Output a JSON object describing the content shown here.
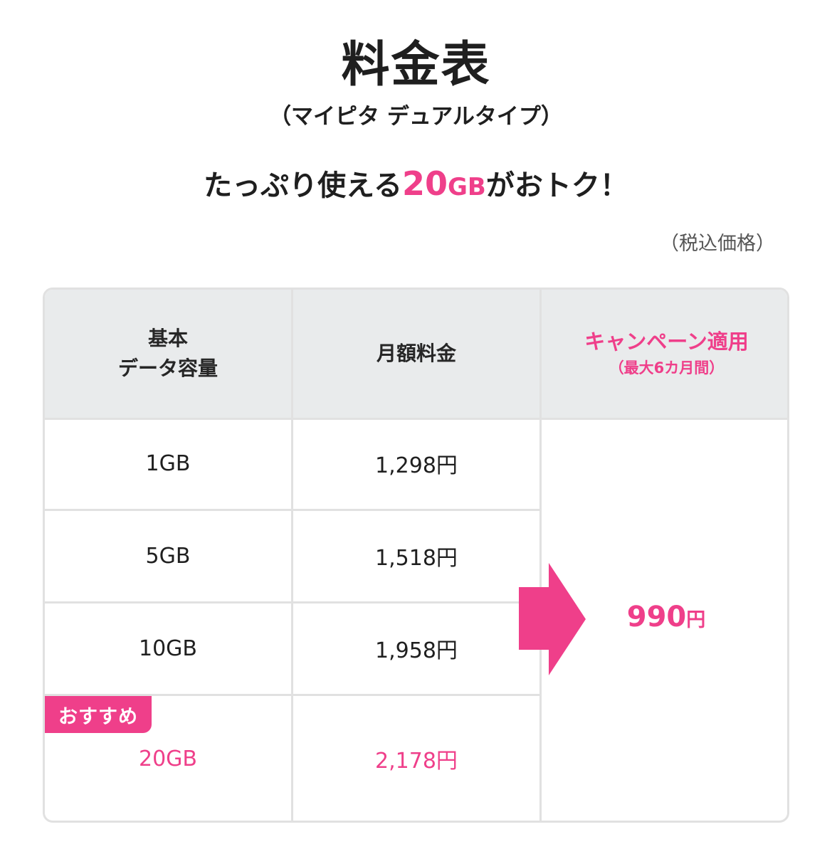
{
  "page": {
    "title": "料金表",
    "subtitle": "（マイピタ デュアルタイプ）",
    "headline": {
      "prefix": "たっぷり使える",
      "highlight_number": "20",
      "highlight_unit": "GB",
      "suffix": "がおトク！"
    },
    "tax_note": "（税込価格）"
  },
  "table": {
    "headers": {
      "data_capacity_line1": "基本",
      "data_capacity_line2": "データ容量",
      "monthly_fee": "月額料金",
      "campaign_title": "キャンペーン適用",
      "campaign_note": "（最大6カ月間）"
    },
    "rows": [
      {
        "capacity": "1GB",
        "price": "1,298円"
      },
      {
        "capacity": "5GB",
        "price": "1,518円"
      },
      {
        "capacity": "10GB",
        "price": "1,958円"
      },
      {
        "capacity": "20GB",
        "price": "2,178円"
      }
    ],
    "recommended_badge": "おすすめ",
    "campaign_price_number": "990",
    "campaign_price_unit": "円"
  },
  "colors": {
    "accent": "#ef3f8a",
    "header_bg": "#e9ebec",
    "border": "#e1e1e1",
    "text": "#1f1f1f"
  }
}
